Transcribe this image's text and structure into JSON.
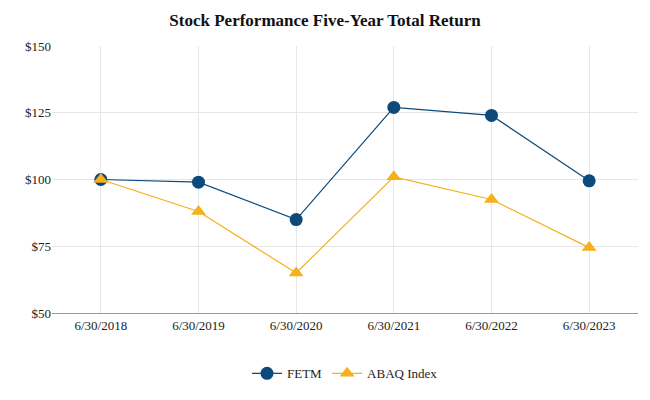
{
  "chart_data": {
    "type": "line",
    "title": "Stock Performance Five-Year Total Return",
    "categories": [
      "6/30/2018",
      "6/30/2019",
      "6/30/2020",
      "6/30/2021",
      "6/30/2022",
      "6/30/2023"
    ],
    "series": [
      {
        "name": "FETM",
        "color": "#0b4a7a",
        "marker": "circle",
        "values": [
          100,
          99,
          85,
          127,
          124,
          99.5
        ]
      },
      {
        "name": "ABAQ Index",
        "color": "#f5b01a",
        "marker": "triangle",
        "values": [
          100,
          88,
          65,
          101,
          92.5,
          74.5
        ]
      }
    ],
    "ylim": [
      50,
      150
    ],
    "yticks": [
      {
        "value": 50,
        "label": "$50"
      },
      {
        "value": 75,
        "label": "$75"
      },
      {
        "value": 100,
        "label": "$100"
      },
      {
        "value": 125,
        "label": "$125"
      },
      {
        "value": 150,
        "label": "$150"
      }
    ],
    "grid": true,
    "legend": "bottom"
  }
}
